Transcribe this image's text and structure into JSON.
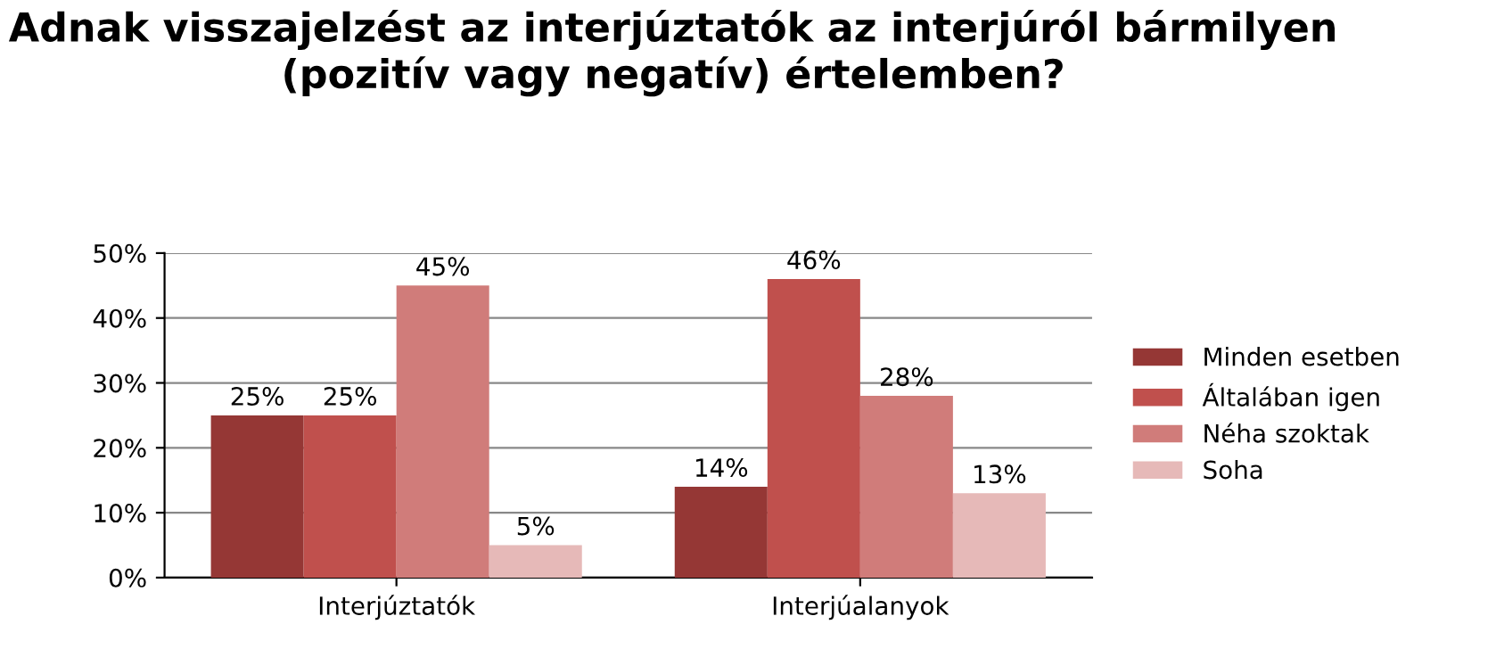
{
  "chart_data": {
    "type": "bar",
    "title": "Adnak visszajelzést az interjúztatók az interjúról bármilyen (pozitív vagy negatív) értelemben?",
    "categories": [
      "Interjúztatók",
      "Interjúalanyok"
    ],
    "series": [
      {
        "name": "Minden esetben",
        "color": "#953735",
        "values": [
          25,
          14
        ],
        "value_labels": [
          "25%",
          "14%"
        ]
      },
      {
        "name": "Általában igen",
        "color": "#c0504d",
        "values": [
          25,
          46
        ],
        "value_labels": [
          "25%",
          "46%"
        ]
      },
      {
        "name": "Néha szoktak",
        "color": "#d07c7a",
        "values": [
          45,
          28
        ],
        "value_labels": [
          "45%",
          "28%"
        ]
      },
      {
        "name": "Soha",
        "color": "#e6b9b8",
        "values": [
          5,
          13
        ],
        "value_labels": [
          "5%",
          "13%"
        ]
      }
    ],
    "ylim": [
      0,
      50
    ],
    "yticks": [
      {
        "value": 0,
        "label": "0%"
      },
      {
        "value": 10,
        "label": "10%"
      },
      {
        "value": 20,
        "label": "20%"
      },
      {
        "value": 30,
        "label": "30%"
      },
      {
        "value": 40,
        "label": "40%"
      },
      {
        "value": 50,
        "label": "50%"
      }
    ],
    "grid": "y",
    "legend": "right"
  }
}
